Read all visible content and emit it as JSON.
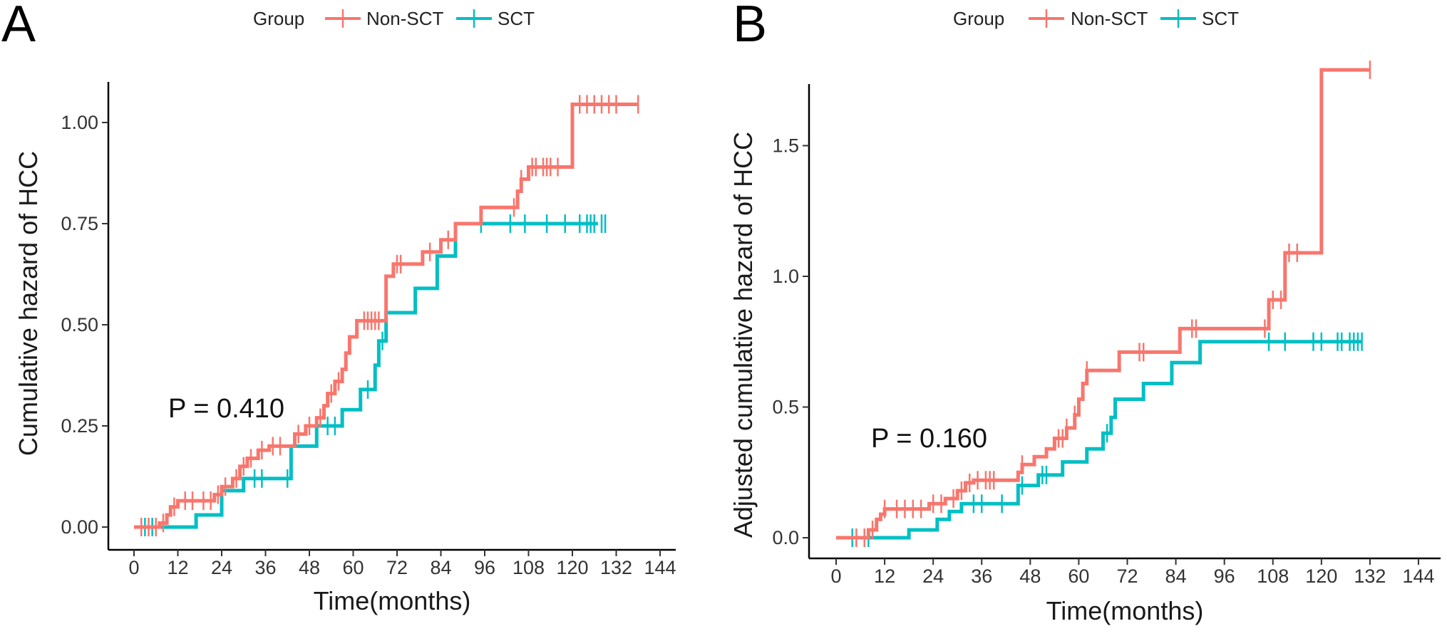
{
  "colors": {
    "Non-SCT": "#F8766D",
    "SCT": "#00BFC4",
    "axis": "#000000"
  },
  "chart_data": [
    {
      "panel_label": "A",
      "type": "line",
      "step": true,
      "legend": {
        "title": "Group",
        "entries": [
          "Non-SCT",
          "SCT"
        ],
        "placement": "top"
      },
      "xlabel": "Time(months)",
      "ylabel": "Cumulative hazard of HCC",
      "xlim": [
        0,
        144
      ],
      "ylim": [
        0,
        1.05
      ],
      "xticks": [
        0,
        12,
        24,
        36,
        48,
        60,
        72,
        84,
        96,
        108,
        120,
        132,
        144
      ],
      "yticks": [
        "0.00",
        "0.25",
        "0.50",
        "0.75",
        "1.00"
      ],
      "ytick_values": [
        0,
        0.25,
        0.5,
        0.75,
        1.0
      ],
      "grid": false,
      "annotation": "P = 0.410",
      "series": [
        {
          "name": "Non-SCT",
          "x": [
            0,
            7,
            9,
            10,
            12,
            22,
            24,
            27,
            29,
            31,
            34,
            37,
            44,
            47,
            50,
            52,
            53,
            55,
            57,
            58,
            59,
            61,
            69,
            71,
            79,
            84,
            88,
            95,
            105,
            106,
            108,
            120,
            138
          ],
          "y": [
            0,
            0.01,
            0.03,
            0.05,
            0.065,
            0.08,
            0.1,
            0.12,
            0.15,
            0.17,
            0.19,
            0.2,
            0.23,
            0.25,
            0.27,
            0.3,
            0.33,
            0.36,
            0.39,
            0.43,
            0.47,
            0.51,
            0.62,
            0.65,
            0.68,
            0.71,
            0.75,
            0.79,
            0.83,
            0.86,
            0.89,
            1.045,
            1.045
          ],
          "censored": [
            2,
            4,
            6,
            8,
            11,
            14,
            16,
            19,
            21,
            23,
            25,
            28,
            30,
            32,
            35,
            38,
            40,
            45,
            48,
            51,
            54,
            56,
            63,
            64,
            65,
            66,
            67,
            72,
            73,
            81,
            86,
            104,
            106,
            109,
            110,
            112,
            113,
            114,
            116,
            122,
            124,
            126,
            128,
            130,
            132,
            138
          ]
        },
        {
          "name": "SCT",
          "x": [
            0,
            17,
            24,
            30,
            43,
            50,
            57,
            62,
            66,
            67,
            69,
            77,
            83,
            88,
            127
          ],
          "y": [
            0,
            0.03,
            0.09,
            0.12,
            0.2,
            0.25,
            0.29,
            0.34,
            0.4,
            0.46,
            0.53,
            0.59,
            0.67,
            0.75,
            0.75
          ],
          "censored": [
            3,
            5,
            33,
            35,
            42,
            53,
            55,
            64,
            68,
            95,
            103,
            107,
            113,
            118,
            122,
            124,
            125,
            126,
            128,
            129
          ]
        }
      ]
    },
    {
      "panel_label": "B",
      "type": "line",
      "step": true,
      "legend": {
        "title": "Group",
        "entries": [
          "Non-SCT",
          "SCT"
        ],
        "placement": "top"
      },
      "xlabel": "Time(months)",
      "ylabel": "Adjusted cumulative hazard of HCC",
      "xlim": [
        0,
        144
      ],
      "ylim": [
        0,
        1.85
      ],
      "xticks": [
        0,
        12,
        24,
        36,
        48,
        60,
        72,
        84,
        96,
        108,
        120,
        132,
        144
      ],
      "yticks": [
        "0.0",
        "0.5",
        "1.0",
        "1.5"
      ],
      "ytick_values": [
        0,
        0.5,
        1.0,
        1.5
      ],
      "grid": false,
      "annotation": "P = 0.160",
      "series": [
        {
          "name": "Non-SCT",
          "x": [
            0,
            8,
            10,
            11,
            12,
            23,
            27,
            30,
            32,
            34,
            45,
            46,
            49,
            52,
            54,
            57,
            59,
            60,
            61,
            62,
            70,
            85,
            107,
            111,
            120,
            132
          ],
          "y": [
            0,
            0.03,
            0.07,
            0.09,
            0.11,
            0.13,
            0.15,
            0.18,
            0.21,
            0.22,
            0.25,
            0.28,
            0.31,
            0.34,
            0.38,
            0.42,
            0.47,
            0.53,
            0.59,
            0.64,
            0.71,
            0.8,
            0.91,
            1.09,
            1.79,
            1.79
          ],
          "censored": [
            5,
            7,
            9,
            12,
            15,
            17,
            19,
            21,
            24,
            26,
            29,
            31,
            33,
            35,
            37,
            38,
            39,
            46,
            55,
            56,
            57,
            59,
            62,
            75,
            76,
            88,
            89,
            106,
            108,
            110,
            112,
            114,
            132
          ]
        },
        {
          "name": "SCT",
          "x": [
            0,
            18,
            25,
            28,
            31,
            45,
            50,
            56,
            62,
            66,
            68,
            69,
            76,
            83,
            90,
            130
          ],
          "y": [
            0,
            0.03,
            0.07,
            0.1,
            0.13,
            0.2,
            0.24,
            0.29,
            0.34,
            0.4,
            0.46,
            0.53,
            0.59,
            0.67,
            0.75,
            0.75
          ],
          "censored": [
            4,
            8,
            34,
            36,
            41,
            46,
            51,
            52,
            67,
            107,
            111,
            118,
            120,
            124,
            125,
            127,
            128,
            129,
            130
          ]
        }
      ]
    }
  ]
}
